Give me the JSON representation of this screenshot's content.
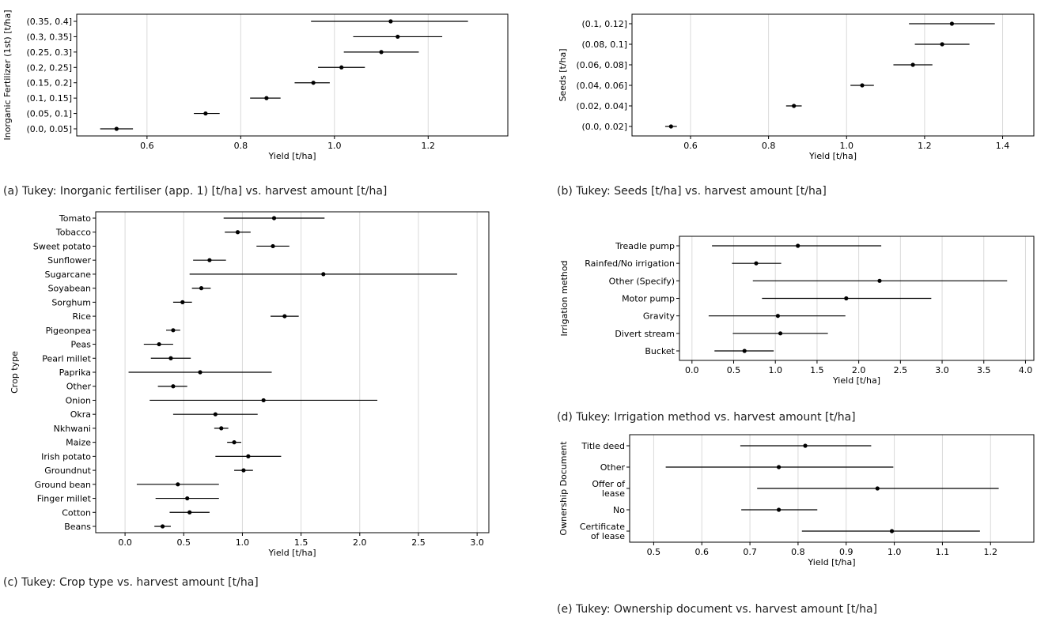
{
  "captions": {
    "a": "(a) Tukey: Inorganic fertiliser (app. 1) [t/ha] vs. harvest amount [t/ha]",
    "b": "(b) Tukey: Seeds [t/ha] vs. harvest amount [t/ha]",
    "c": "(c) Tukey: Crop type vs. harvest amount [t/ha]",
    "d": "(d) Tukey: Irrigation method vs. harvest amount [t/ha]",
    "e": "(e) Tukey: Ownership document vs. harvest amount [t/ha]"
  },
  "chart_data": [
    {
      "id": "a",
      "type": "errorbar",
      "xlabel": "Yield [t/ha]",
      "ylabel": "Inorganic Fertilizer (1st) [t/ha]",
      "xlim": [
        0.45,
        1.37
      ],
      "xticks": [
        0.6,
        0.8,
        1.0,
        1.2
      ],
      "xtick_labels": [
        "0.6",
        "0.8",
        "1.0",
        "1.2"
      ],
      "grid": "vertical",
      "categories": [
        "(0.35, 0.4]",
        "(0.3, 0.35]",
        "(0.25, 0.3]",
        "(0.2, 0.25]",
        "(0.15, 0.2]",
        "(0.1, 0.15]",
        "(0.05, 0.1]",
        "(0.0, 0.05]"
      ],
      "mean": [
        1.12,
        1.135,
        1.1,
        1.015,
        0.955,
        0.855,
        0.725,
        0.535
      ],
      "lower": [
        0.95,
        1.04,
        1.02,
        0.965,
        0.915,
        0.82,
        0.7,
        0.5
      ],
      "upper": [
        1.285,
        1.23,
        1.18,
        1.065,
        0.99,
        0.885,
        0.755,
        0.57
      ]
    },
    {
      "id": "b",
      "type": "errorbar",
      "xlabel": "Yield [t/ha]",
      "ylabel": "Seeds [t/ha]",
      "xlim": [
        0.45,
        1.48
      ],
      "xticks": [
        0.6,
        0.8,
        1.0,
        1.2,
        1.4
      ],
      "xtick_labels": [
        "0.6",
        "0.8",
        "1.0",
        "1.2",
        "1.4"
      ],
      "grid": "vertical",
      "categories": [
        "(0.1, 0.12]",
        "(0.08, 0.1]",
        "(0.06, 0.08]",
        "(0.04, 0.06]",
        "(0.02, 0.04]",
        "(0.0, 0.02]"
      ],
      "mean": [
        1.27,
        1.245,
        1.17,
        1.04,
        0.865,
        0.55
      ],
      "lower": [
        1.16,
        1.175,
        1.12,
        1.01,
        0.845,
        0.535
      ],
      "upper": [
        1.38,
        1.315,
        1.22,
        1.07,
        0.885,
        0.565
      ]
    },
    {
      "id": "c",
      "type": "errorbar",
      "xlabel": "Yield [t/ha]",
      "ylabel": "Crop type",
      "xlim": [
        -0.25,
        3.1
      ],
      "xticks": [
        0,
        0.5,
        1,
        1.5,
        2,
        2.5,
        3
      ],
      "xtick_labels": [
        "0.0",
        "0.5",
        "1.0",
        "1.5",
        "2.0",
        "2.5",
        "3.0"
      ],
      "grid": "vertical",
      "categories": [
        "Tomato",
        "Tobacco",
        "Sweet potato",
        "Sunflower",
        "Sugarcane",
        "Soyabean",
        "Sorghum",
        "Rice",
        "Pigeonpea",
        "Peas",
        "Pearl millet",
        "Paprika",
        "Other",
        "Onion",
        "Okra",
        "Nkhwani",
        "Maize",
        "Irish potato",
        "Groundnut",
        "Ground bean",
        "Finger millet",
        "Cotton",
        "Beans"
      ],
      "mean": [
        1.27,
        0.96,
        1.26,
        0.72,
        1.69,
        0.65,
        0.49,
        1.36,
        0.41,
        0.29,
        0.39,
        0.64,
        0.41,
        1.18,
        0.77,
        0.82,
        0.93,
        1.05,
        1.01,
        0.45,
        0.53,
        0.55,
        0.32
      ],
      "lower": [
        0.84,
        0.85,
        1.12,
        0.58,
        0.55,
        0.57,
        0.41,
        1.24,
        0.35,
        0.16,
        0.22,
        0.03,
        0.28,
        0.21,
        0.41,
        0.76,
        0.87,
        0.77,
        0.93,
        0.1,
        0.26,
        0.38,
        0.25
      ],
      "upper": [
        1.7,
        1.07,
        1.4,
        0.86,
        2.83,
        0.73,
        0.57,
        1.48,
        0.47,
        0.41,
        0.56,
        1.25,
        0.53,
        2.15,
        1.13,
        0.88,
        0.99,
        1.33,
        1.09,
        0.8,
        0.8,
        0.72,
        0.39
      ]
    },
    {
      "id": "d",
      "type": "errorbar",
      "xlabel": "Yield [t/ha]",
      "ylabel": "Irrigation method",
      "xlim": [
        -0.15,
        4.1
      ],
      "xticks": [
        0,
        0.5,
        1,
        1.5,
        2,
        2.5,
        3,
        3.5,
        4
      ],
      "xtick_labels": [
        "0.0",
        "0.5",
        "1.0",
        "1.5",
        "2.0",
        "2.5",
        "3.0",
        "3.5",
        "4.0"
      ],
      "grid": "vertical",
      "categories": [
        "Treadle pump",
        "Rainfed/No irrigation",
        "Other (Specify)",
        "Motor pump",
        "Gravity",
        "Divert stream",
        "Bucket"
      ],
      "mean": [
        1.27,
        0.77,
        2.25,
        1.85,
        1.03,
        1.06,
        0.63
      ],
      "lower": [
        0.24,
        0.48,
        0.73,
        0.84,
        0.2,
        0.49,
        0.27
      ],
      "upper": [
        2.27,
        1.07,
        3.78,
        2.87,
        1.84,
        1.63,
        0.98
      ]
    },
    {
      "id": "e",
      "type": "errorbar",
      "xlabel": "Yield [t/ha]",
      "ylabel": "Ownership Document",
      "xlim": [
        0.45,
        1.29
      ],
      "xticks": [
        0.5,
        0.6,
        0.7,
        0.8,
        0.9,
        1.0,
        1.1,
        1.2
      ],
      "xtick_labels": [
        "0.5",
        "0.6",
        "0.7",
        "0.8",
        "0.9",
        "1.0",
        "1.1",
        "1.2"
      ],
      "grid": "vertical",
      "categories": [
        [
          "Title deed"
        ],
        [
          "Other"
        ],
        [
          "Offer of",
          "lease"
        ],
        [
          "No"
        ],
        [
          "Certificate",
          "of lease"
        ]
      ],
      "mean": [
        0.815,
        0.76,
        0.965,
        0.76,
        0.995
      ],
      "lower": [
        0.68,
        0.525,
        0.715,
        0.682,
        0.808
      ],
      "upper": [
        0.952,
        0.998,
        1.217,
        0.84,
        1.178
      ]
    }
  ]
}
